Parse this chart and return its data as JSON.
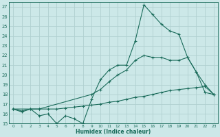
{
  "xlabel": "Humidex (Indice chaleur)",
  "xlim": [
    -0.5,
    23.5
  ],
  "ylim": [
    15,
    27.5
  ],
  "yticks": [
    15,
    16,
    17,
    18,
    19,
    20,
    21,
    22,
    23,
    24,
    25,
    26,
    27
  ],
  "xticks": [
    0,
    1,
    2,
    3,
    4,
    5,
    6,
    7,
    8,
    9,
    10,
    11,
    12,
    13,
    14,
    15,
    16,
    17,
    18,
    19,
    20,
    21,
    22,
    23
  ],
  "bg_color": "#cce8e8",
  "line_color": "#1a6b5a",
  "grid_color": "#b0d0d0",
  "series1_x": [
    0,
    1,
    2,
    3,
    4,
    5,
    6,
    7,
    8,
    9,
    10,
    11,
    12,
    13,
    14,
    15,
    16,
    17,
    18,
    19,
    20,
    21,
    22,
    23
  ],
  "series1_y": [
    16.5,
    16.2,
    16.5,
    15.8,
    16.0,
    15.0,
    15.8,
    15.5,
    15.0,
    17.5,
    19.5,
    20.5,
    21.0,
    21.0,
    23.5,
    27.2,
    26.2,
    25.2,
    24.5,
    24.2,
    21.8,
    20.3,
    18.2,
    18.0
  ],
  "series2_x": [
    0,
    3,
    9,
    10,
    11,
    12,
    13,
    14,
    15,
    16,
    17,
    18,
    19,
    20,
    21,
    22,
    23
  ],
  "series2_y": [
    16.5,
    16.5,
    18.0,
    18.5,
    19.3,
    20.0,
    20.5,
    21.5,
    22.0,
    21.8,
    21.8,
    21.5,
    21.5,
    21.8,
    20.3,
    19.0,
    18.0
  ],
  "series3_x": [
    0,
    1,
    2,
    3,
    4,
    5,
    6,
    7,
    8,
    9,
    10,
    11,
    12,
    13,
    14,
    15,
    16,
    17,
    18,
    19,
    20,
    21,
    22,
    23
  ],
  "series3_y": [
    16.5,
    16.3,
    16.5,
    16.5,
    16.5,
    16.5,
    16.6,
    16.7,
    16.8,
    16.9,
    17.0,
    17.2,
    17.3,
    17.5,
    17.7,
    17.8,
    18.0,
    18.2,
    18.4,
    18.5,
    18.6,
    18.7,
    18.8,
    18.0
  ]
}
